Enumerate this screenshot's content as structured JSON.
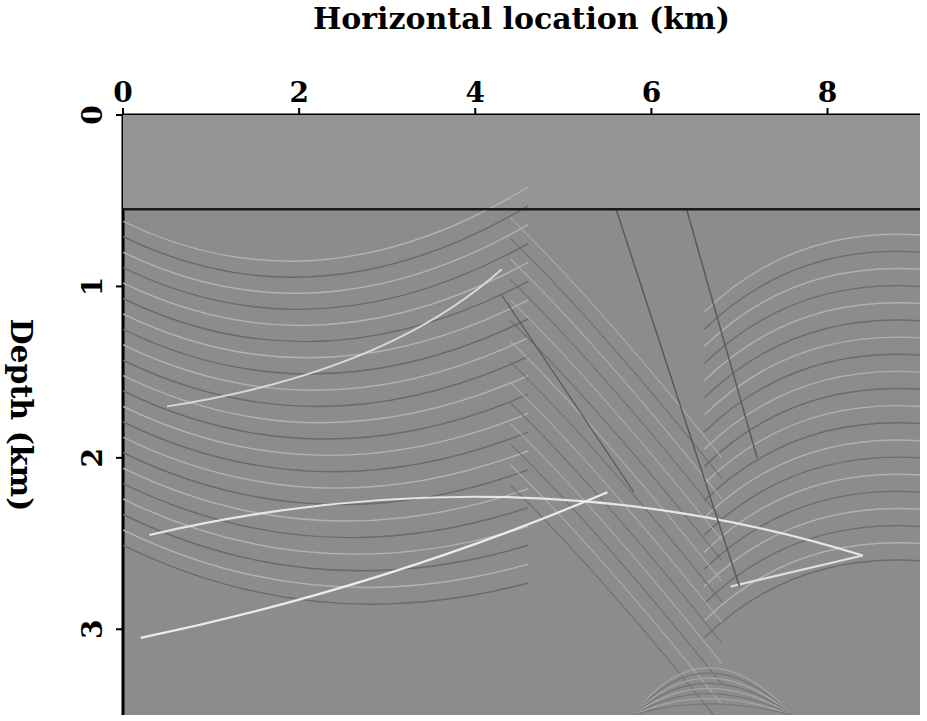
{
  "chart_data": {
    "type": "image",
    "xlabel": "Horizontal location (km)",
    "ylabel": "Depth (km)",
    "xlim": [
      0,
      9.05
    ],
    "ylim": [
      0,
      3.5
    ],
    "xticks": [
      0,
      2,
      4,
      6,
      8
    ],
    "yticks": [
      0,
      1,
      2,
      3
    ],
    "grid": false,
    "color": "#8c8c8c"
  }
}
